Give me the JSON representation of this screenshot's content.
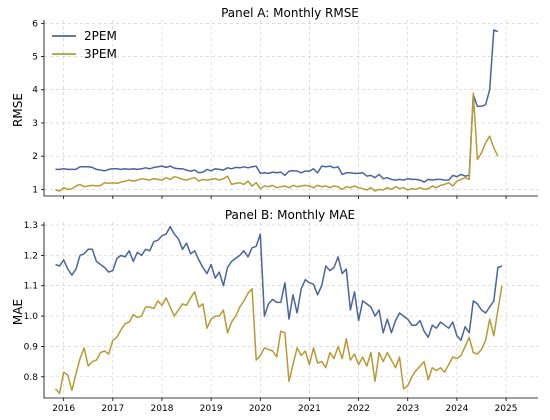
{
  "colors": {
    "2PEM": "#4a64a0",
    "3PEM": "#b89a35"
  },
  "chart_data": [
    {
      "type": "line",
      "title": "Panel A: Monthly RMSE",
      "xlabel": "",
      "ylabel": "RMSE",
      "ylim": [
        0.8,
        6.1
      ],
      "yticks": [
        1,
        2,
        3,
        4,
        5,
        6
      ],
      "xlim": [
        2015.6,
        2025.65
      ],
      "xticks": [
        2016,
        2017,
        2018,
        2019,
        2020,
        2021,
        2022,
        2023,
        2024,
        2025
      ],
      "grid": true,
      "legend": "top-left",
      "x_start": "2015-11",
      "series": [
        {
          "name": "2PEM",
          "values": [
            1.6,
            1.6,
            1.62,
            1.6,
            1.6,
            1.6,
            1.68,
            1.68,
            1.68,
            1.66,
            1.6,
            1.58,
            1.56,
            1.6,
            1.62,
            1.62,
            1.6,
            1.62,
            1.6,
            1.62,
            1.6,
            1.62,
            1.65,
            1.62,
            1.66,
            1.68,
            1.7,
            1.66,
            1.7,
            1.64,
            1.62,
            1.62,
            1.58,
            1.55,
            1.58,
            1.5,
            1.52,
            1.6,
            1.56,
            1.62,
            1.6,
            1.58,
            1.65,
            1.62,
            1.66,
            1.65,
            1.68,
            1.65,
            1.68,
            1.7,
            1.48,
            1.5,
            1.48,
            1.52,
            1.5,
            1.52,
            1.42,
            1.55,
            1.56,
            1.55,
            1.5,
            1.55,
            1.55,
            1.62,
            1.5,
            1.7,
            1.68,
            1.7,
            1.65,
            1.68,
            1.45,
            1.5,
            1.5,
            1.48,
            1.48,
            1.5,
            1.4,
            1.42,
            1.35,
            1.45,
            1.32,
            1.35,
            1.3,
            1.28,
            1.3,
            1.28,
            1.32,
            1.3,
            1.3,
            1.28,
            1.22,
            1.3,
            1.28,
            1.3,
            1.3,
            1.28,
            1.28,
            1.42,
            1.38,
            1.45,
            1.4,
            1.42,
            3.85,
            3.5,
            3.5,
            3.55,
            4.0,
            5.8,
            5.75
          ]
        },
        {
          "name": "3PEM",
          "values": [
            0.98,
            0.95,
            1.05,
            1.0,
            1.02,
            1.1,
            1.15,
            1.08,
            1.1,
            1.12,
            1.1,
            1.12,
            1.2,
            1.18,
            1.2,
            1.18,
            1.22,
            1.25,
            1.28,
            1.25,
            1.28,
            1.32,
            1.3,
            1.28,
            1.32,
            1.3,
            1.28,
            1.35,
            1.3,
            1.38,
            1.35,
            1.3,
            1.28,
            1.32,
            1.35,
            1.25,
            1.3,
            1.28,
            1.3,
            1.32,
            1.28,
            1.32,
            1.4,
            1.15,
            1.18,
            1.2,
            1.15,
            1.25,
            1.1,
            1.2,
            1.02,
            1.1,
            1.08,
            1.12,
            1.05,
            1.08,
            1.1,
            1.05,
            1.12,
            1.08,
            1.1,
            1.12,
            1.1,
            1.05,
            1.12,
            1.08,
            1.1,
            1.05,
            1.1,
            1.08,
            1.0,
            1.08,
            1.05,
            1.1,
            1.05,
            1.02,
            0.98,
            1.05,
            0.95,
            1.0,
            0.98,
            1.05,
            1.0,
            1.08,
            1.02,
            1.05,
            0.98,
            1.02,
            1.0,
            1.05,
            1.0,
            1.02,
            1.1,
            1.05,
            1.12,
            1.15,
            1.2,
            1.1,
            1.25,
            1.3,
            1.35,
            1.3,
            3.9,
            1.9,
            2.1,
            2.4,
            2.6,
            2.25,
            2.0
          ]
        }
      ]
    },
    {
      "type": "line",
      "title": "Panel B: Monthly MAE",
      "xlabel": "",
      "ylabel": "MAE",
      "ylim": [
        0.73,
        1.31
      ],
      "yticks": [
        0.8,
        0.9,
        1.0,
        1.1,
        1.2,
        1.3
      ],
      "xlim": [
        2015.6,
        2025.65
      ],
      "xticks": [
        2016,
        2017,
        2018,
        2019,
        2020,
        2021,
        2022,
        2023,
        2024,
        2025
      ],
      "grid": true,
      "legend": "",
      "x_start": "2015-11",
      "series": [
        {
          "name": "2PEM",
          "values": [
            1.17,
            1.165,
            1.185,
            1.155,
            1.135,
            1.155,
            1.2,
            1.205,
            1.22,
            1.22,
            1.18,
            1.17,
            1.16,
            1.145,
            1.15,
            1.19,
            1.2,
            1.195,
            1.215,
            1.18,
            1.21,
            1.2,
            1.22,
            1.215,
            1.245,
            1.25,
            1.265,
            1.27,
            1.295,
            1.27,
            1.255,
            1.22,
            1.24,
            1.205,
            1.215,
            1.185,
            1.16,
            1.14,
            1.17,
            1.125,
            1.145,
            1.1,
            1.16,
            1.18,
            1.19,
            1.2,
            1.215,
            1.195,
            1.225,
            1.23,
            1.27,
            1.0,
            1.04,
            1.055,
            1.045,
            1.045,
            1.11,
            0.99,
            1.07,
            1.01,
            1.09,
            1.12,
            1.11,
            1.105,
            1.07,
            1.1,
            1.165,
            1.15,
            1.16,
            1.195,
            1.14,
            1.155,
            1.02,
            1.08,
            0.985,
            1.05,
            1.04,
            1.03,
            1.0,
            1.02,
            0.945,
            0.99,
            0.945,
            0.985,
            1.01,
            1.0,
            0.99,
            0.97,
            0.97,
            0.985,
            0.95,
            0.93,
            0.97,
            0.96,
            0.98,
            0.97,
            0.96,
            0.98,
            0.935,
            0.92,
            0.965,
            0.945,
            1.05,
            1.04,
            1.02,
            1.01,
            1.03,
            1.05,
            1.16,
            1.165
          ]
        },
        {
          "name": "3PEM",
          "values": [
            0.76,
            0.745,
            0.815,
            0.805,
            0.755,
            0.81,
            0.86,
            0.895,
            0.835,
            0.85,
            0.855,
            0.88,
            0.885,
            0.875,
            0.92,
            0.93,
            0.955,
            0.975,
            0.98,
            1.005,
            0.995,
            1.0,
            1.03,
            1.03,
            1.025,
            1.05,
            1.035,
            1.06,
            1.03,
            1.0,
            1.02,
            1.04,
            1.035,
            1.06,
            1.08,
            1.03,
            1.04,
            0.96,
            0.99,
            1.0,
            1.0,
            1.02,
            0.945,
            0.98,
            1.0,
            1.03,
            1.05,
            1.075,
            1.09,
            0.855,
            0.87,
            0.895,
            0.89,
            0.885,
            0.865,
            0.95,
            0.945,
            0.785,
            0.84,
            0.895,
            0.87,
            0.885,
            0.84,
            0.895,
            0.845,
            0.85,
            0.83,
            0.88,
            0.86,
            0.9,
            0.86,
            0.925,
            0.855,
            0.875,
            0.84,
            0.865,
            0.835,
            0.88,
            0.785,
            0.88,
            0.85,
            0.88,
            0.855,
            0.83,
            0.865,
            0.76,
            0.77,
            0.8,
            0.82,
            0.835,
            0.85,
            0.79,
            0.83,
            0.82,
            0.83,
            0.815,
            0.84,
            0.865,
            0.86,
            0.87,
            0.9,
            0.93,
            0.88,
            0.875,
            0.89,
            0.92,
            0.99,
            0.935,
            1.02,
            1.1
          ]
        }
      ]
    }
  ]
}
